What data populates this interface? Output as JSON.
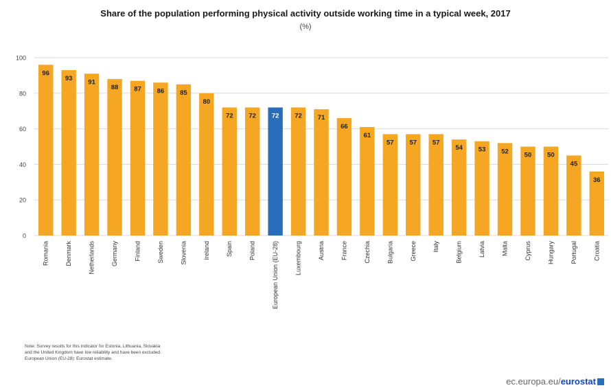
{
  "chart_data": {
    "type": "bar",
    "title": "Share of the population performing physical activity outside working time in a typical week, 2017",
    "subtitle": "(%)",
    "categories": [
      "Romania",
      "Denmark",
      "Netherlands",
      "Germany",
      "Finland",
      "Sweden",
      "Slovenia",
      "Ireland",
      "Spain",
      "Poland",
      "European Union (EU-28)",
      "Luxembourg",
      "Austria",
      "France",
      "Czechia",
      "Bulgaria",
      "Greece",
      "Italy",
      "Belgium",
      "Latvia",
      "Malta",
      "Cyprus",
      "Hungary",
      "Portugal",
      "Croatia"
    ],
    "values": [
      96,
      93,
      91,
      88,
      87,
      86,
      85,
      80,
      72,
      72,
      72,
      72,
      71,
      66,
      61,
      57,
      57,
      57,
      54,
      53,
      52,
      50,
      50,
      45,
      36
    ],
    "highlight_index": 10,
    "ylim": [
      0,
      100
    ],
    "yticks": [
      0,
      20,
      40,
      60,
      80,
      100
    ],
    "grid": true,
    "colors": {
      "bar": "#f5a623",
      "highlight": "#2a6ebb",
      "grid": "#d9d9d9"
    }
  },
  "note": {
    "lines": [
      "Note: Survey results for this indicator for Estonia, Lithuania, Slovakia",
      "and the United Kingdom have low reliability and have been excluded.",
      "European Union (EU-28): Eurostat estimate."
    ]
  },
  "footer": {
    "prefix": "ec.europa.eu/",
    "brand": "eurostat"
  }
}
